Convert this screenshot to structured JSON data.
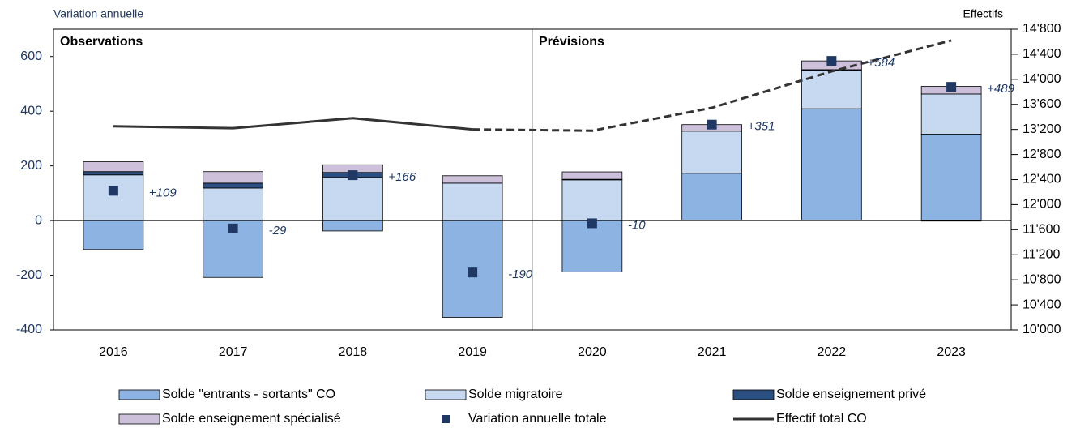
{
  "chart_data": {
    "type": "bar",
    "stacked": true,
    "ylabel": "Variation annuelle",
    "y2label": "Effectifs",
    "categories": [
      "2016",
      "2017",
      "2018",
      "2019",
      "2020",
      "2021",
      "2022",
      "2023"
    ],
    "panels": [
      {
        "label": "Observations",
        "from": "2016"
      },
      {
        "label": "Prévisions",
        "from": "2020"
      }
    ],
    "ylim": [
      -400,
      700
    ],
    "yticks": [
      -400,
      -200,
      0,
      200,
      400,
      600
    ],
    "y2lim": [
      10000,
      14800
    ],
    "y2ticks": [
      {
        "value": 10000,
        "label": "10'000"
      },
      {
        "value": 10400,
        "label": "10'400"
      },
      {
        "value": 10800,
        "label": "10'800"
      },
      {
        "value": 11200,
        "label": "11'200"
      },
      {
        "value": 11600,
        "label": "11'600"
      },
      {
        "value": 12000,
        "label": "12'000"
      },
      {
        "value": 12400,
        "label": "12'400"
      },
      {
        "value": 12800,
        "label": "12'800"
      },
      {
        "value": 13200,
        "label": "13'200"
      },
      {
        "value": 13600,
        "label": "13'600"
      },
      {
        "value": 14000,
        "label": "14'000"
      },
      {
        "value": 14400,
        "label": "14'400"
      },
      {
        "value": 14800,
        "label": "14'800"
      }
    ],
    "series": [
      {
        "name": "Solde \"entrants - sortants\" CO",
        "type": "bar",
        "color": "#8db3e2",
        "values": [
          -106,
          -208,
          -38,
          -354,
          -188,
          173,
          409,
          316
        ]
      },
      {
        "name": "Solde migratoire",
        "type": "bar",
        "color": "#c6d9f1",
        "values": [
          167,
          119,
          158,
          137,
          149,
          154,
          140,
          147
        ]
      },
      {
        "name": "Solde enseignement privé",
        "type": "bar",
        "color": "#2b4f80",
        "values": [
          12,
          18,
          18,
          0,
          2,
          0,
          3,
          -2
        ]
      },
      {
        "name": "Solde enseignement spécialisé",
        "type": "bar",
        "color": "#ccc0da",
        "values": [
          36,
          42,
          28,
          27,
          27,
          24,
          32,
          28
        ]
      },
      {
        "name": "Variation annuelle totale",
        "type": "scatter",
        "color": "#1f3864",
        "values": [
          109,
          -29,
          166,
          -190,
          -10,
          351,
          584,
          489
        ],
        "value_labels": [
          "+109",
          "-29",
          "+166",
          "-190",
          "-10",
          "+351",
          "+584",
          "+489"
        ]
      },
      {
        "name": "Effectif total CO",
        "type": "line",
        "axis": "y2",
        "color": "#333333",
        "dashed_from": "2019",
        "values": [
          13250,
          13220,
          13380,
          13200,
          13180,
          13545,
          14127,
          14620
        ]
      }
    ]
  }
}
